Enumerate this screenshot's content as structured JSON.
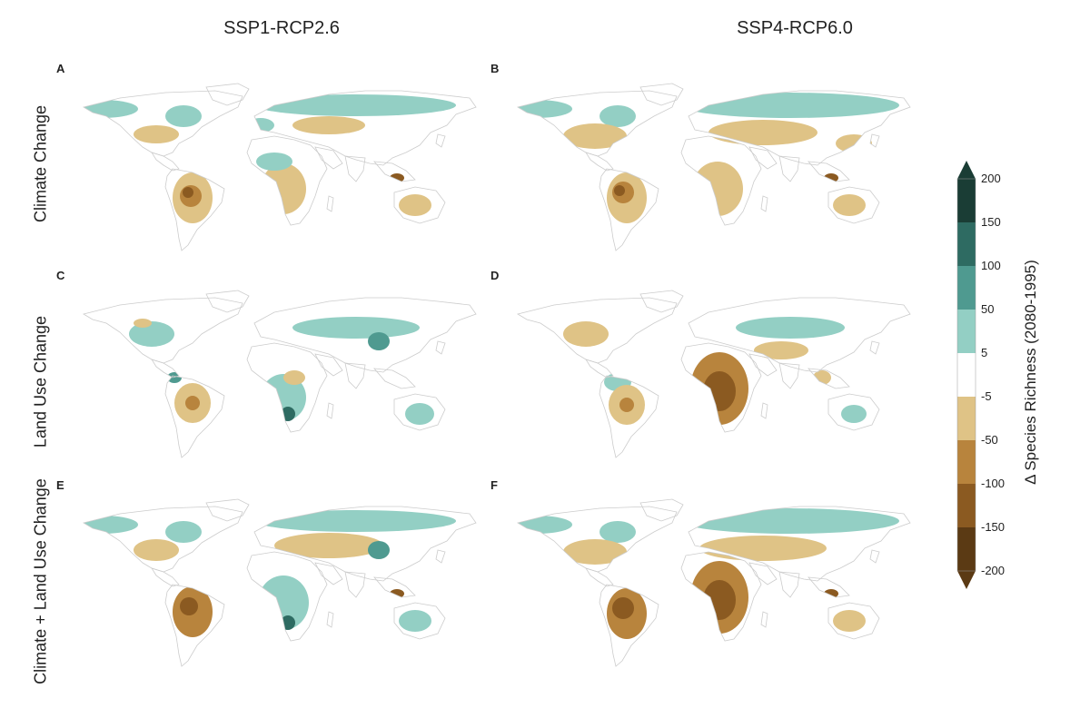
{
  "columns": [
    "SSP1-RCP2.6",
    "SSP4-RCP6.0"
  ],
  "rows": [
    "Climate Change",
    "Land Use Change",
    "Climate + Land Use Change"
  ],
  "panels": [
    "A",
    "B",
    "C",
    "D",
    "E",
    "F"
  ],
  "legend": {
    "title": "Δ Species Richness (2080-1995)",
    "ticks": [
      "200",
      "150",
      "100",
      "50",
      "5",
      "-5",
      "-50",
      "-100",
      "-150",
      "-200"
    ],
    "colors": [
      "#1a3d35",
      "#2e6b62",
      "#4f9a90",
      "#93cfc4",
      "#ffffff",
      "#dfc386",
      "#b8843d",
      "#8b5a21",
      "#5b3a14"
    ]
  },
  "palette": {
    "gain_low": "#93cfc4",
    "gain_mid": "#4f9a90",
    "gain_high": "#2e6b62",
    "loss_low": "#dfc386",
    "loss_mid": "#b8843d",
    "loss_high": "#8b5a21",
    "coast": "#cccccc"
  }
}
